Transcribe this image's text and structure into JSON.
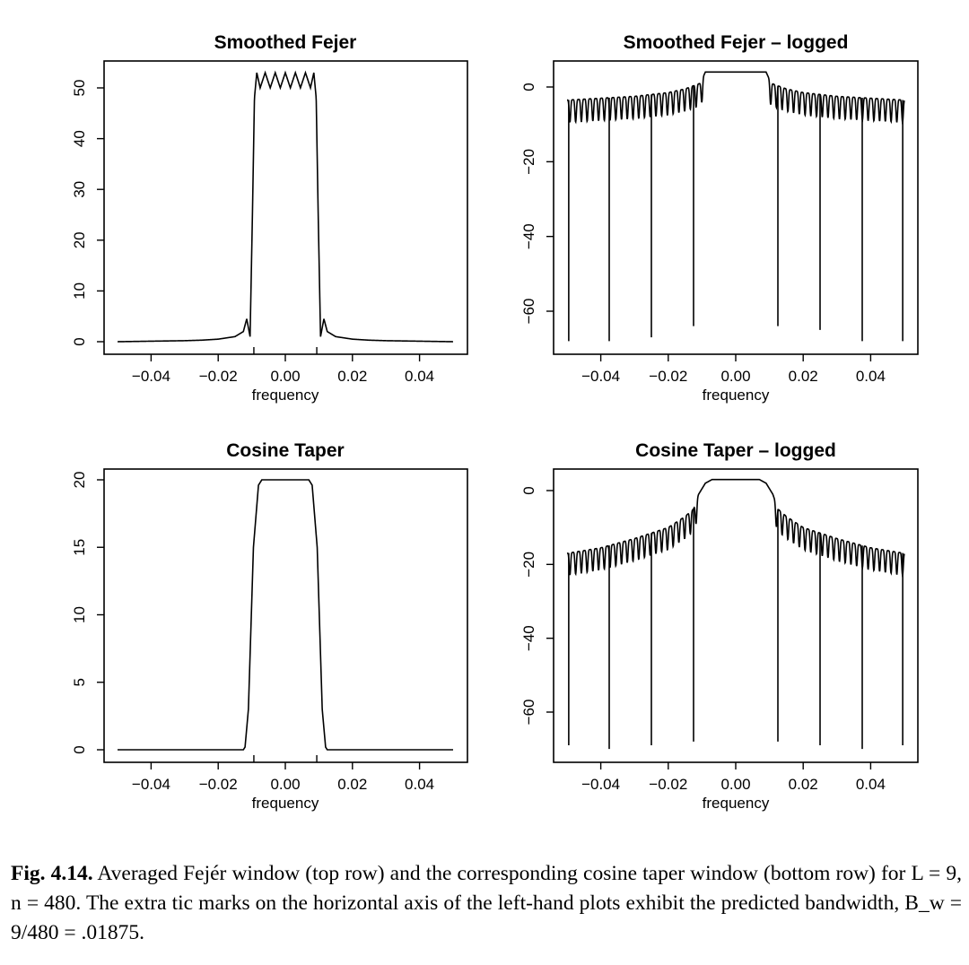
{
  "panels": [
    {
      "id": "fejer",
      "title": "Smoothed Fejer",
      "xlabel": "frequency"
    },
    {
      "id": "fejer_log",
      "title": "Smoothed Fejer – logged",
      "xlabel": "frequency"
    },
    {
      "id": "cosine",
      "title": "Cosine Taper",
      "xlabel": "frequency"
    },
    {
      "id": "cosine_log",
      "title": "Cosine Taper – logged",
      "xlabel": "frequency"
    }
  ],
  "caption": {
    "label": "Fig. 4.14.",
    "text": "Averaged Fejér window (top row) and the corresponding cosine taper window (bottom row) for L = 9,  n = 480. The extra tic marks on the horizontal axis of the left-hand plots exhibit the predicted bandwidth, B_w = 9/480 = .01875."
  },
  "chart_data": [
    {
      "type": "line",
      "title": "Smoothed Fejer",
      "xlabel": "frequency",
      "ylabel": "",
      "xlim": [
        -0.05,
        0.05
      ],
      "ylim": [
        0,
        55
      ],
      "xticks": [
        -0.04,
        -0.02,
        0.0,
        0.02,
        0.04
      ],
      "xtick_labels": [
        "−0.04",
        "−0.02",
        "0.00",
        "0.02",
        "0.04"
      ],
      "yticks": [
        0,
        10,
        20,
        30,
        40,
        50
      ],
      "ytick_labels": [
        "0",
        "10",
        "20",
        "30",
        "40",
        "50"
      ],
      "bandwidth_ticks": [
        -0.009375,
        0.009375
      ],
      "series": [
        {
          "x": [
            -0.05,
            -0.045,
            -0.04,
            -0.035,
            -0.03,
            -0.025,
            -0.02,
            -0.015,
            -0.0125,
            -0.0115,
            -0.0105,
            -0.0098,
            -0.0092,
            -0.0085,
            -0.0075,
            -0.006,
            -0.0045,
            -0.003,
            -0.0015,
            0.0,
            0.0015,
            0.003,
            0.0045,
            0.006,
            0.0075,
            0.0085,
            0.0092,
            0.0098,
            0.0105,
            0.0115,
            0.0125,
            0.015,
            0.02,
            0.025,
            0.03,
            0.035,
            0.04,
            0.045,
            0.05
          ],
          "y": [
            0,
            0.05,
            0.1,
            0.15,
            0.2,
            0.3,
            0.5,
            1.0,
            2.0,
            4.5,
            1.0,
            25,
            48,
            53,
            50,
            53,
            50,
            53,
            50,
            53,
            50,
            53,
            50,
            53,
            50,
            53,
            48,
            25,
            1.0,
            4.5,
            2.0,
            1.0,
            0.5,
            0.3,
            0.2,
            0.15,
            0.1,
            0.05,
            0
          ]
        }
      ]
    },
    {
      "type": "line",
      "title": "Smoothed Fejer – logged",
      "xlabel": "frequency",
      "ylabel": "",
      "xlim": [
        -0.05,
        0.05
      ],
      "ylim": [
        -70,
        5
      ],
      "xticks": [
        -0.04,
        -0.02,
        0.0,
        0.02,
        0.04
      ],
      "xtick_labels": [
        "−0.04",
        "−0.02",
        "0.00",
        "0.02",
        "0.04"
      ],
      "yticks": [
        -60,
        -40,
        -20,
        0
      ],
      "ytick_labels": [
        "−60",
        "−40",
        "−20",
        "0"
      ],
      "deep_nulls": [
        [
          -0.0495,
          -68
        ],
        [
          -0.0375,
          -68
        ],
        [
          -0.025,
          -67
        ],
        [
          -0.0125,
          -64
        ],
        [
          0.0125,
          -64
        ],
        [
          0.025,
          -65
        ],
        [
          0.0375,
          -68
        ],
        [
          0.0495,
          -68
        ]
      ],
      "series": [
        {
          "x": [
            -0.05,
            -0.04,
            -0.03,
            -0.02,
            -0.015,
            -0.0105,
            -0.009,
            0.0,
            0.009,
            0.0105,
            0.015,
            0.02,
            0.03,
            0.04,
            0.05
          ],
          "y": [
            -3.5,
            -3.0,
            -2.5,
            -1.5,
            -0.5,
            1.0,
            4.0,
            4.0,
            4.0,
            1.0,
            -0.5,
            -1.5,
            -2.5,
            -3.0,
            -3.5
          ],
          "ripple_depth_db": 6,
          "ripple_period": 0.0017
        }
      ]
    },
    {
      "type": "line",
      "title": "Cosine Taper",
      "xlabel": "frequency",
      "ylabel": "",
      "xlim": [
        -0.05,
        0.05
      ],
      "ylim": [
        0,
        20
      ],
      "xticks": [
        -0.04,
        -0.02,
        0.0,
        0.02,
        0.04
      ],
      "xtick_labels": [
        "−0.04",
        "−0.02",
        "0.00",
        "0.02",
        "0.04"
      ],
      "yticks": [
        0,
        5,
        10,
        15,
        20
      ],
      "ytick_labels": [
        "0",
        "5",
        "10",
        "15",
        "20"
      ],
      "bandwidth_ticks": [
        -0.009375,
        0.009375
      ],
      "series": [
        {
          "x": [
            -0.05,
            -0.0125,
            -0.012,
            -0.011,
            -0.0095,
            -0.008,
            -0.007,
            0.0,
            0.007,
            0.008,
            0.0095,
            0.011,
            0.012,
            0.0125,
            0.05
          ],
          "y": [
            0,
            0,
            0.2,
            3.0,
            15.0,
            19.6,
            20.0,
            20.0,
            20.0,
            19.6,
            15.0,
            3.0,
            0.2,
            0,
            0
          ]
        }
      ]
    },
    {
      "type": "line",
      "title": "Cosine Taper – logged",
      "xlabel": "frequency",
      "ylabel": "",
      "xlim": [
        -0.05,
        0.05
      ],
      "ylim": [
        -70,
        5
      ],
      "xticks": [
        -0.04,
        -0.02,
        0.0,
        0.02,
        0.04
      ],
      "xtick_labels": [
        "−0.04",
        "−0.02",
        "0.00",
        "0.02",
        "0.04"
      ],
      "yticks": [
        -60,
        -40,
        -20,
        0
      ],
      "ytick_labels": [
        "−60",
        "−40",
        "−20",
        "0"
      ],
      "deep_nulls": [
        [
          -0.0495,
          -69
        ],
        [
          -0.0375,
          -70
        ],
        [
          -0.025,
          -69
        ],
        [
          -0.0125,
          -68
        ],
        [
          0.0125,
          -68
        ],
        [
          0.025,
          -69
        ],
        [
          0.0375,
          -70
        ],
        [
          0.0495,
          -69
        ]
      ],
      "series": [
        {
          "x": [
            -0.05,
            -0.04,
            -0.03,
            -0.02,
            -0.015,
            -0.0125,
            -0.011,
            -0.009,
            -0.007,
            0.0,
            0.007,
            0.009,
            0.011,
            0.0125,
            0.015,
            0.02,
            0.03,
            0.04,
            0.05
          ],
          "y": [
            -17,
            -15.5,
            -13,
            -10,
            -7,
            -5,
            -1,
            2.0,
            3.0,
            3.0,
            3.0,
            2.0,
            -1,
            -5,
            -7,
            -10,
            -13,
            -15.5,
            -17
          ],
          "ripple_depth_db": 6,
          "ripple_period": 0.0017
        }
      ]
    }
  ]
}
